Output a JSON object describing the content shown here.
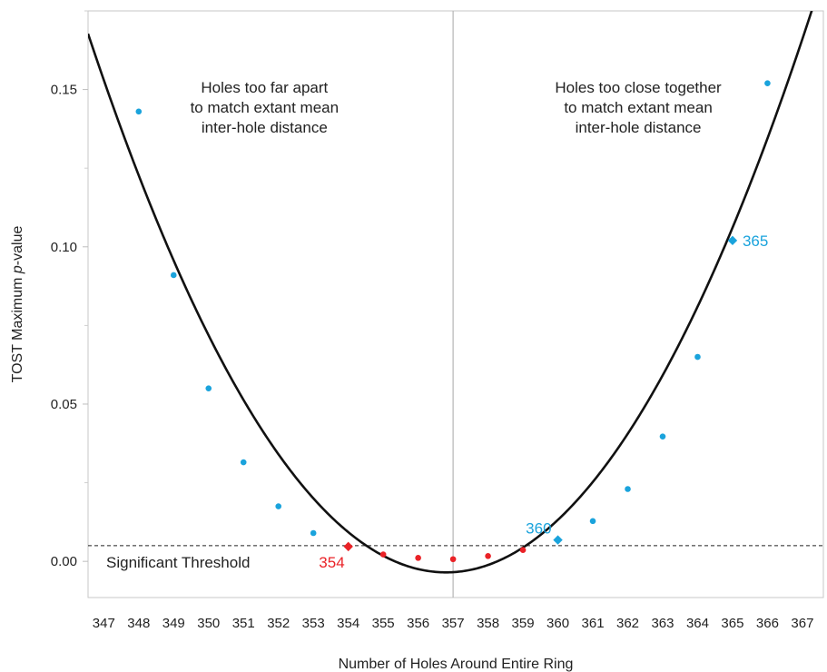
{
  "chart_data": {
    "type": "scatter",
    "title": "",
    "xlabel": "Number of Holes Around Entire Ring",
    "ylabel_prefix": "TOST Maximum ",
    "ylabel_italic": "p",
    "ylabel_suffix": "-value",
    "xlim": [
      346.55,
      367.6
    ],
    "ylim": [
      -0.0115,
      0.175
    ],
    "x_ticks": [
      "347",
      "348",
      "349",
      "350",
      "351",
      "352",
      "353",
      "354",
      "355",
      "356",
      "357",
      "358",
      "359",
      "360",
      "361",
      "362",
      "363",
      "364",
      "365",
      "366",
      "367"
    ],
    "y_ticks": [
      {
        "value": 0.0,
        "label": "0.00"
      },
      {
        "value": 0.05,
        "label": "0.05"
      },
      {
        "value": 0.1,
        "label": "0.10"
      },
      {
        "value": 0.15,
        "label": "0.15"
      }
    ],
    "threshold": {
      "value": 0.005,
      "label": "Significant Threshold"
    },
    "divider_x": 357,
    "curve": {
      "vertex_x": 356.8,
      "vertex_y": -0.0035,
      "a": 0.00163
    },
    "points": [
      {
        "x": 348,
        "y": 0.143,
        "group": "not-significant"
      },
      {
        "x": 349,
        "y": 0.091,
        "group": "not-significant"
      },
      {
        "x": 350,
        "y": 0.055,
        "group": "not-significant"
      },
      {
        "x": 351,
        "y": 0.0315,
        "group": "not-significant"
      },
      {
        "x": 352,
        "y": 0.0175,
        "group": "not-significant"
      },
      {
        "x": 353,
        "y": 0.009,
        "group": "not-significant"
      },
      {
        "x": 354,
        "y": 0.0047,
        "group": "significant",
        "highlight": true,
        "label": "354"
      },
      {
        "x": 355,
        "y": 0.0022,
        "group": "significant"
      },
      {
        "x": 356,
        "y": 0.0011,
        "group": "significant"
      },
      {
        "x": 357,
        "y": 0.0007,
        "group": "significant"
      },
      {
        "x": 358,
        "y": 0.0017,
        "group": "significant"
      },
      {
        "x": 359,
        "y": 0.0036,
        "group": "significant"
      },
      {
        "x": 360,
        "y": 0.0068,
        "group": "not-significant",
        "highlight": true,
        "label": "360"
      },
      {
        "x": 361,
        "y": 0.0128,
        "group": "not-significant"
      },
      {
        "x": 362,
        "y": 0.023,
        "group": "not-significant"
      },
      {
        "x": 363,
        "y": 0.0397,
        "group": "not-significant"
      },
      {
        "x": 364,
        "y": 0.065,
        "group": "not-significant"
      },
      {
        "x": 365,
        "y": 0.102,
        "group": "not-significant",
        "highlight": true,
        "label": "365"
      },
      {
        "x": 366,
        "y": 0.152,
        "group": "not-significant"
      }
    ],
    "annotations": [
      {
        "lines": [
          "Holes too far apart",
          "to match extant mean",
          "inter-hole distance"
        ],
        "x": 351.6,
        "y": 0.149
      },
      {
        "lines": [
          "Holes too close together",
          "to match extant mean",
          "inter-hole distance"
        ],
        "x": 362.3,
        "y": 0.149
      }
    ],
    "colors": {
      "significant": "#ea2227",
      "not-significant": "#1aa3dc",
      "curve": "#111111",
      "axis": "#c7c7c7",
      "divider": "#b5b5b5",
      "threshold": "#222222"
    },
    "grid": false,
    "legend": "none"
  }
}
